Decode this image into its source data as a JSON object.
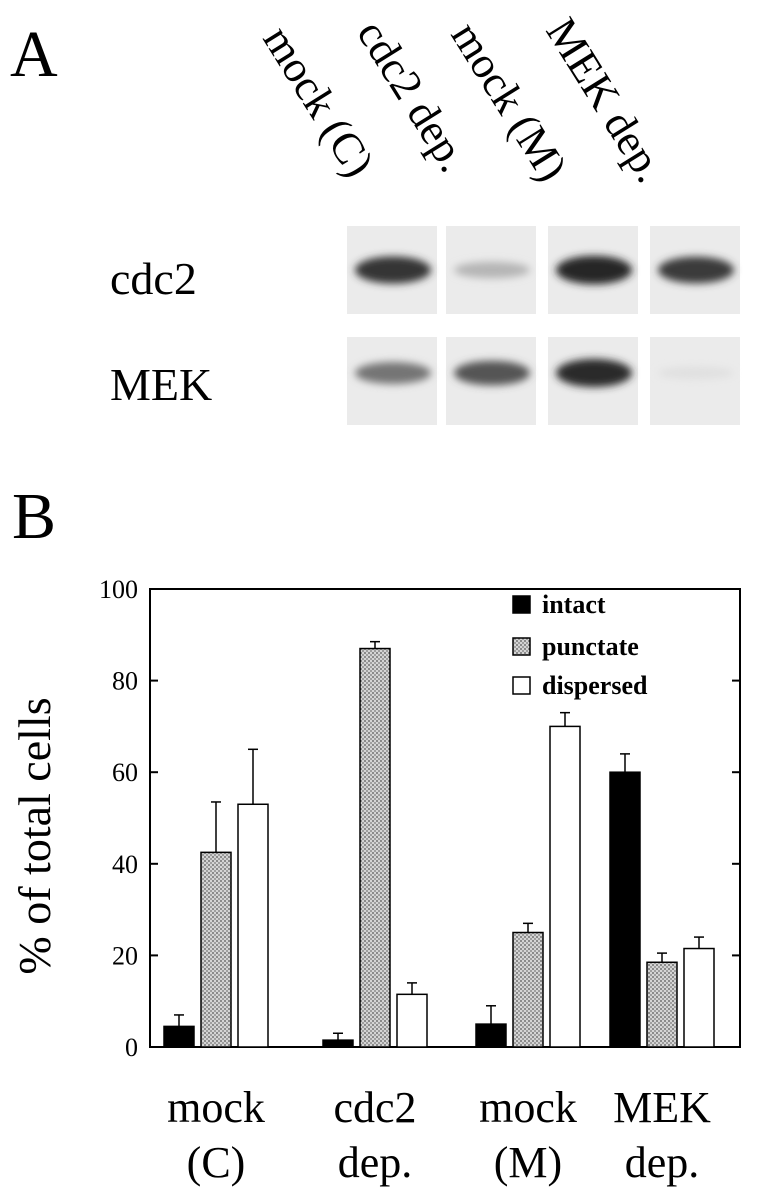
{
  "panel_a": {
    "letter": "A",
    "lanes": [
      "mock (C)",
      "cdc2 dep.",
      "mock (M)",
      "MEK dep."
    ],
    "rows": [
      {
        "label": "cdc2",
        "intensity": [
          0.85,
          0.25,
          0.92,
          0.82
        ]
      },
      {
        "label": "MEK",
        "intensity": [
          0.55,
          0.7,
          0.9,
          0.05
        ]
      }
    ]
  },
  "panel_b": {
    "letter": "B"
  },
  "chart_data": {
    "type": "bar",
    "title": "",
    "xlabel": "",
    "ylabel": "% of total cells",
    "ylim": [
      0,
      100
    ],
    "yticks": [
      0,
      20,
      40,
      60,
      80,
      100
    ],
    "categories": [
      [
        "mock",
        "(C)"
      ],
      [
        "cdc2",
        "dep."
      ],
      [
        "mock",
        "(M)"
      ],
      [
        "MEK",
        "dep."
      ]
    ],
    "legend_position": "top-right",
    "series": [
      {
        "name": "intact",
        "fill": "solid",
        "color": "#000000",
        "values": [
          4.5,
          1.5,
          5,
          60
        ],
        "errors": [
          2.5,
          1.5,
          4,
          4
        ]
      },
      {
        "name": "punctate",
        "fill": "stipple",
        "color": "#aaaaaa",
        "values": [
          42.5,
          87,
          25,
          18.5
        ],
        "errors": [
          11,
          1.5,
          2,
          2
        ]
      },
      {
        "name": "dispersed",
        "fill": "open",
        "color": "#ffffff",
        "values": [
          53,
          11.5,
          70,
          21.5
        ],
        "errors": [
          12,
          2.5,
          3,
          2.5
        ]
      }
    ]
  }
}
